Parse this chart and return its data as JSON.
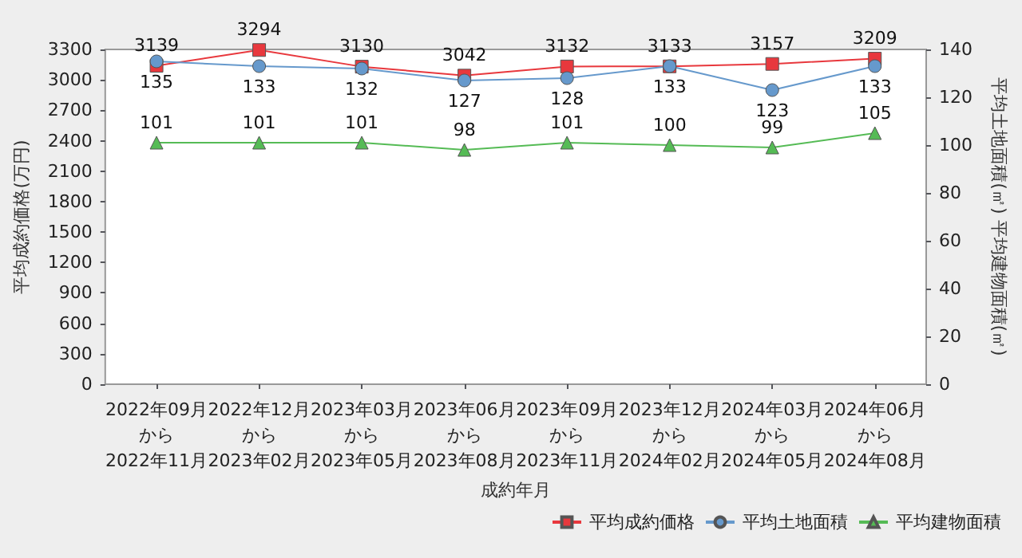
{
  "chart_data": {
    "type": "line",
    "xlabel": "成約年月",
    "ylabel": "平均成約価格(万円)",
    "y2label": "平均土地面積(㎡) 平均建物面積(㎡)",
    "categories": [
      "2022年09月から2022年11月",
      "2022年12月から2023年02月",
      "2023年03月から2023年05月",
      "2023年06月から2023年08月",
      "2023年09月から2023年11月",
      "2023年12月から2024年02月",
      "2024年03月から2024年05月",
      "2024年06月から2024年08月"
    ],
    "series": [
      {
        "name": "平均成約価格",
        "color": "#e8383d",
        "marker": "square",
        "values": [
          3139,
          3294,
          3130,
          3042,
          3132,
          3133,
          3157,
          3209
        ]
      },
      {
        "name": "平均土地面積",
        "color": "#6699cc",
        "marker": "circle",
        "axis": "y2",
        "values": [
          135,
          133,
          132,
          127,
          128,
          133,
          123,
          133
        ]
      },
      {
        "name": "平均建物面積",
        "color": "#55bb55",
        "marker": "triangle",
        "axis": "y2",
        "values": [
          101,
          101,
          101,
          98,
          101,
          100,
          99,
          105
        ]
      }
    ],
    "ylim": [
      0,
      3300
    ],
    "yticks": [
      0,
      300,
      600,
      900,
      1200,
      1500,
      1800,
      2100,
      2400,
      2700,
      3000,
      3300
    ],
    "y2lim": [
      0,
      140
    ],
    "y2ticks": [
      0,
      20,
      40,
      60,
      80,
      100,
      120,
      140
    ],
    "data_labels": true,
    "legend": "bottom right",
    "grid": false
  }
}
